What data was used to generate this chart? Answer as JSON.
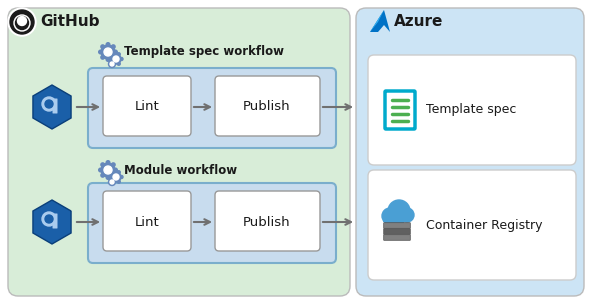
{
  "fig_width": 5.92,
  "fig_height": 3.04,
  "bg_color": "#ffffff",
  "github_bg": "#d8edd8",
  "azure_bg": "#cce4f5",
  "inner_box_bg": "#c8dcee",
  "white_box_bg": "#ffffff",
  "github_label": "GitHub",
  "azure_label": "Azure",
  "workflow1_label": "Template spec workflow",
  "workflow2_label": "Module workflow",
  "lint_label": "Lint",
  "publish_label": "Publish",
  "template_spec_label": "Template spec",
  "container_registry_label": "Container Registry",
  "arrow_color": "#707070",
  "box_border_color": "#aaaaaa",
  "inner_border_color": "#7aaecc",
  "gear_color": "#6688bb",
  "hex_color": "#1a5fa8"
}
